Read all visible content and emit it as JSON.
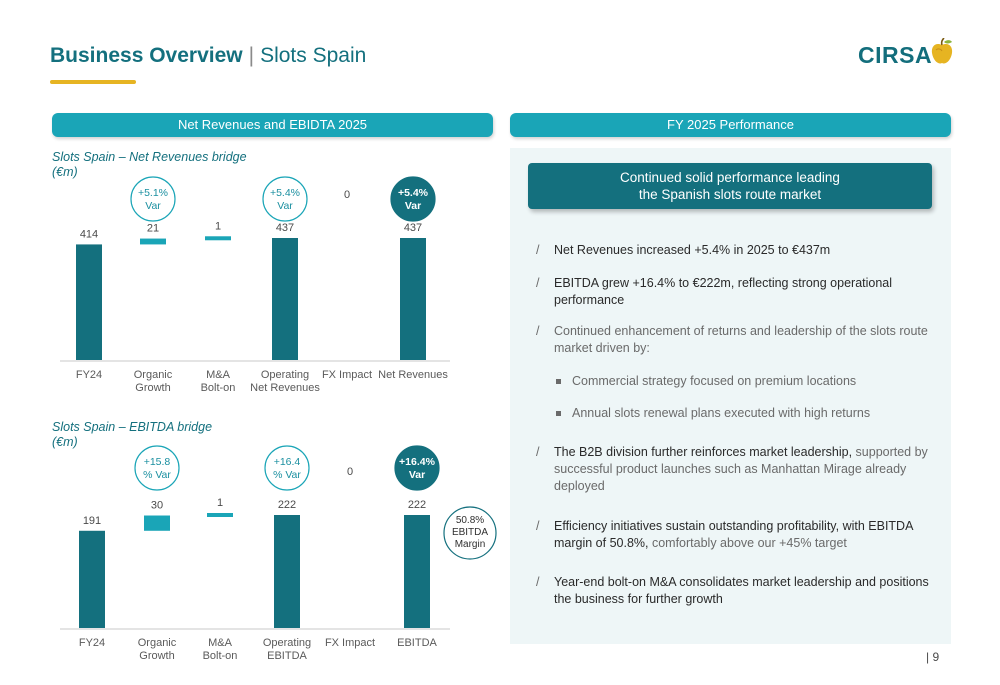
{
  "header": {
    "title_strong": "Business Overview",
    "title_sep": "|",
    "title_light": "Slots Spain",
    "logo_text": "CIRSA"
  },
  "sections": {
    "left_header": "Net Revenues and EBIDTA 2025",
    "right_header": "FY 2025 Performance"
  },
  "chart_titles": {
    "revenues": [
      "Slots Spain – Net Revenues bridge",
      "(€m)"
    ],
    "ebitda": [
      "Slots Spain – EBITDA bridge",
      "(€m)"
    ]
  },
  "chart_data": [
    {
      "type": "bar",
      "subtype": "waterfall",
      "categories": [
        [
          "FY24"
        ],
        [
          "Organic",
          "Growth"
        ],
        [
          "M&A",
          "Bolt-on"
        ],
        [
          "Operating",
          "Net Revenues"
        ],
        [
          "FX Impact"
        ],
        [
          "Net Revenues"
        ]
      ],
      "values": [
        414,
        21,
        1,
        437,
        0,
        437
      ],
      "value_labels": [
        "414",
        "21",
        "1",
        "437",
        "0",
        "437"
      ],
      "kinds": [
        "total",
        "increment",
        "increment",
        "total",
        "increment",
        "total"
      ],
      "annotations": [
        {
          "category_index": 1,
          "lines": [
            "+5.1%",
            "Var"
          ],
          "style": "outline"
        },
        {
          "category_index": 3,
          "lines": [
            "+5.4%",
            "Var"
          ],
          "style": "outline"
        },
        {
          "category_index": 5,
          "lines": [
            "+5.4%",
            "Var"
          ],
          "style": "filled"
        }
      ],
      "colors": {
        "total": "#14707e",
        "increment": "#1aa5b7",
        "outline": "#1aa5b7",
        "filled": "#14707e"
      }
    },
    {
      "type": "bar",
      "subtype": "waterfall",
      "categories": [
        [
          "FY24"
        ],
        [
          "Organic",
          "Growth"
        ],
        [
          "M&A",
          "Bolt-on"
        ],
        [
          "Operating",
          "EBITDA"
        ],
        [
          "FX Impact"
        ],
        [
          "EBITDA"
        ]
      ],
      "values": [
        191,
        30,
        1,
        222,
        0,
        222
      ],
      "value_labels": [
        "191",
        "30",
        "1",
        "222",
        "0",
        "222"
      ],
      "kinds": [
        "total",
        "increment",
        "increment",
        "total",
        "increment",
        "total"
      ],
      "annotations": [
        {
          "category_index": 1,
          "lines": [
            "+15.8",
            "% Var"
          ],
          "style": "outline"
        },
        {
          "category_index": 3,
          "lines": [
            "+16.4",
            "% Var"
          ],
          "style": "outline"
        },
        {
          "category_index": 5,
          "lines": [
            "+16.4%",
            "Var"
          ],
          "style": "filled"
        }
      ],
      "side_annotation": {
        "lines": [
          "50.8%",
          "EBITDA",
          "Margin"
        ]
      },
      "colors": {
        "total": "#14707e",
        "increment": "#1aa5b7",
        "outline": "#1aa5b7",
        "filled": "#14707e"
      }
    }
  ],
  "callout": [
    "Continued solid performance leading",
    "the Spanish slots route market"
  ],
  "bullets": [
    {
      "slash": "/",
      "bold": "Net Revenues increased +5.4% in 2025 to €437m",
      "normal": ""
    },
    {
      "slash": "/",
      "bold": "EBITDA grew +16.4% to €222m, reflecting strong operational performance",
      "normal": ""
    },
    {
      "slash": "/",
      "bold": "",
      "normal": "Continued enhancement of returns and leadership of the slots route market driven by:"
    },
    {
      "slash": "/",
      "bold": "The B2B division further reinforces market leadership,",
      "normal": " supported by successful product launches such as Manhattan Mirage already deployed"
    },
    {
      "slash": "/",
      "bold": "Efficiency initiatives sustain outstanding profitability, with EBITDA margin of 50.8%,",
      "normal": " comfortably above our +45% target"
    },
    {
      "slash": "/",
      "bold": "Year-end bolt-on M&A consolidates market leadership and positions the business for further growth",
      "normal": ""
    }
  ],
  "sub_bullets": [
    "Commercial strategy focused on premium locations",
    "Annual slots renewal plans executed with high returns"
  ],
  "page_number": "| 9"
}
